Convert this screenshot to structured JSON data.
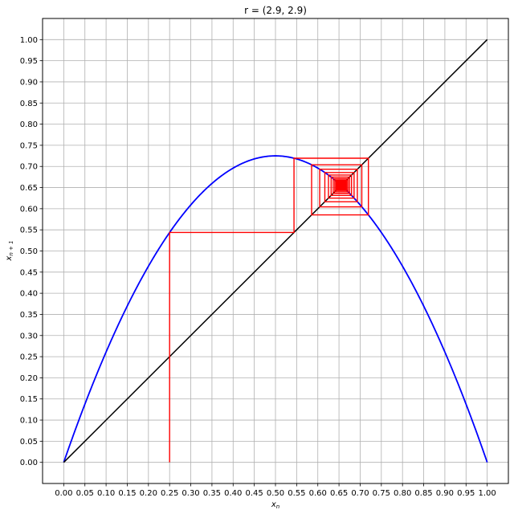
{
  "chart_data": {
    "type": "line",
    "title": "r = (2.9, 2.9)",
    "xlabel": {
      "base": "x",
      "sub": "n"
    },
    "ylabel": {
      "base": "x",
      "sub": "n + 1"
    },
    "xlim": [
      -0.05,
      1.05
    ],
    "ylim": [
      -0.05,
      1.05
    ],
    "grid": true,
    "r": 2.9,
    "x0": 0.25,
    "iterations": 60,
    "xticks": [
      "0.00",
      "0.05",
      "0.10",
      "0.15",
      "0.20",
      "0.25",
      "0.30",
      "0.35",
      "0.40",
      "0.45",
      "0.50",
      "0.55",
      "0.60",
      "0.65",
      "0.70",
      "0.75",
      "0.80",
      "0.85",
      "0.90",
      "0.95",
      "1.00"
    ],
    "yticks": [
      "0.00",
      "0.05",
      "0.10",
      "0.15",
      "0.20",
      "0.25",
      "0.30",
      "0.35",
      "0.40",
      "0.45",
      "0.50",
      "0.55",
      "0.60",
      "0.65",
      "0.70",
      "0.75",
      "0.80",
      "0.85",
      "0.90",
      "0.95",
      "1.00"
    ],
    "series": [
      {
        "kind": "logistic-map",
        "color": "#0000ff"
      },
      {
        "kind": "identity",
        "color": "#000000"
      },
      {
        "kind": "cobweb",
        "color": "#ff0000"
      }
    ]
  }
}
